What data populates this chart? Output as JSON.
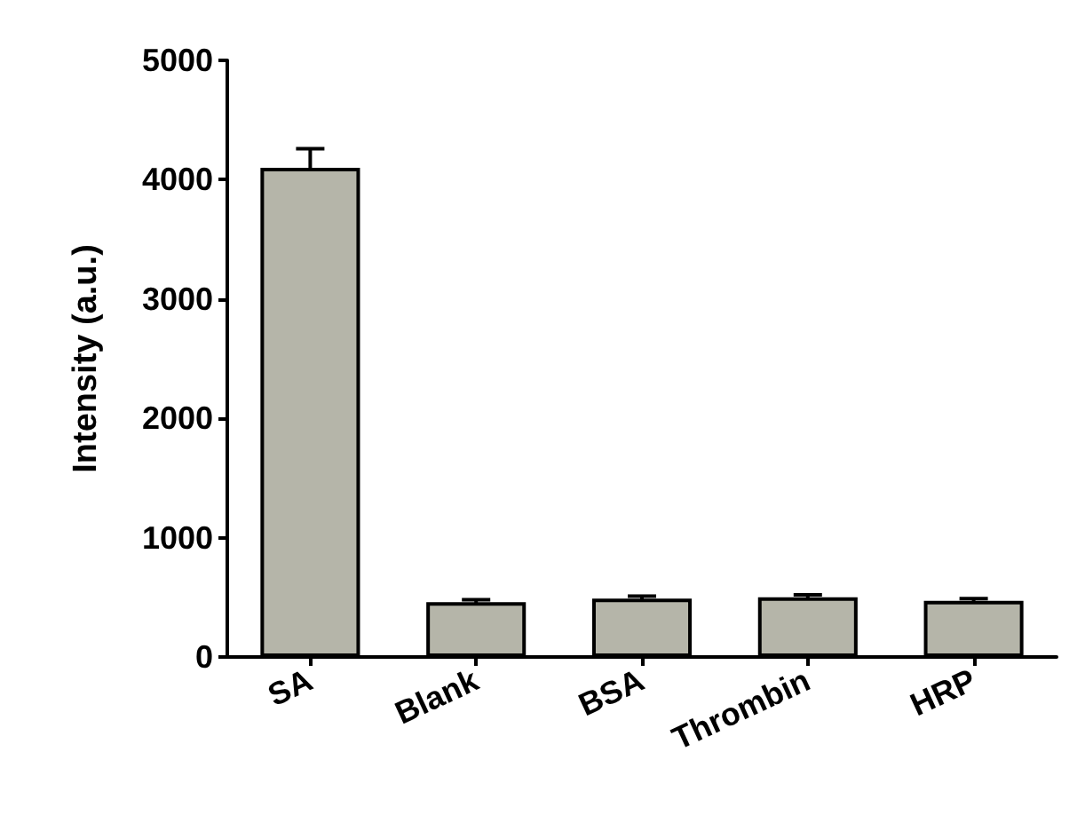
{
  "chart_data": {
    "type": "bar",
    "ylabel": "Intensity (a.u.)",
    "categories": [
      "SA",
      "Blank",
      "BSA",
      "Thrombin",
      "HRP"
    ],
    "values": [
      4100,
      460,
      490,
      500,
      470
    ],
    "errors": [
      160,
      20,
      20,
      20,
      20
    ],
    "color": "#b5b5a9",
    "ylim": [
      0,
      5000
    ],
    "yticks": [
      0,
      1000,
      2000,
      3000,
      4000,
      5000
    ],
    "grid": false
  }
}
